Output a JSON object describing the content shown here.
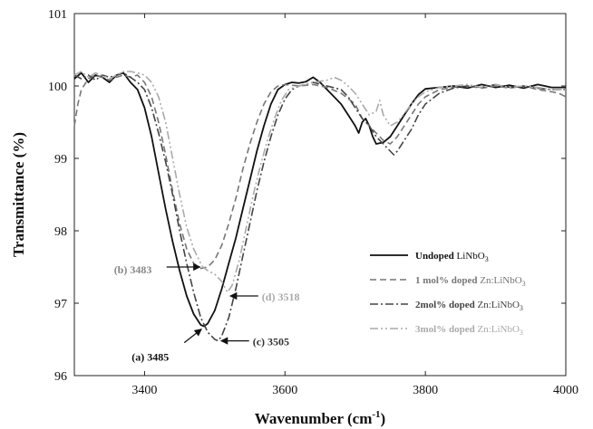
{
  "chart_data": {
    "type": "line",
    "title": "",
    "xlabel": "Wavenumber",
    "xlabel_unit": "(cm",
    "xlabel_unit_sup": "-1",
    "xlabel_unit_close": ")",
    "ylabel": "Transmittance (%)",
    "xlim": [
      3300,
      4000
    ],
    "ylim": [
      96,
      101
    ],
    "xticks": [
      3400,
      3600,
      3800,
      4000
    ],
    "yticks": [
      96,
      97,
      98,
      99,
      100,
      101
    ],
    "grid": false,
    "legend_position": "bottom-right",
    "series": [
      {
        "name": "Undoped LiNbO3",
        "name_bold": "Undoped ",
        "name_normal": "LiNbO",
        "name_sub": "3",
        "color": "#111111",
        "dash": "",
        "points": [
          [
            3300,
            100.1
          ],
          [
            3310,
            100.18
          ],
          [
            3320,
            100.05
          ],
          [
            3330,
            100.15
          ],
          [
            3340,
            100.12
          ],
          [
            3350,
            100.05
          ],
          [
            3360,
            100.15
          ],
          [
            3370,
            100.18
          ],
          [
            3380,
            100.05
          ],
          [
            3390,
            99.95
          ],
          [
            3400,
            99.7
          ],
          [
            3410,
            99.3
          ],
          [
            3420,
            98.8
          ],
          [
            3430,
            98.3
          ],
          [
            3440,
            97.85
          ],
          [
            3450,
            97.45
          ],
          [
            3460,
            97.1
          ],
          [
            3470,
            96.85
          ],
          [
            3480,
            96.7
          ],
          [
            3485,
            96.68
          ],
          [
            3490,
            96.72
          ],
          [
            3500,
            96.9
          ],
          [
            3510,
            97.2
          ],
          [
            3520,
            97.55
          ],
          [
            3530,
            97.9
          ],
          [
            3540,
            98.3
          ],
          [
            3550,
            98.7
          ],
          [
            3560,
            99.1
          ],
          [
            3570,
            99.45
          ],
          [
            3580,
            99.75
          ],
          [
            3590,
            99.95
          ],
          [
            3600,
            100.02
          ],
          [
            3610,
            100.05
          ],
          [
            3620,
            100.04
          ],
          [
            3630,
            100.06
          ],
          [
            3640,
            100.12
          ],
          [
            3650,
            100.05
          ],
          [
            3660,
            99.95
          ],
          [
            3670,
            99.85
          ],
          [
            3680,
            99.75
          ],
          [
            3690,
            99.6
          ],
          [
            3700,
            99.45
          ],
          [
            3705,
            99.35
          ],
          [
            3710,
            99.5
          ],
          [
            3715,
            99.55
          ],
          [
            3720,
            99.45
          ],
          [
            3725,
            99.3
          ],
          [
            3730,
            99.2
          ],
          [
            3740,
            99.22
          ],
          [
            3750,
            99.3
          ],
          [
            3760,
            99.45
          ],
          [
            3770,
            99.6
          ],
          [
            3780,
            99.75
          ],
          [
            3790,
            99.88
          ],
          [
            3800,
            99.96
          ],
          [
            3820,
            99.98
          ],
          [
            3840,
            100.0
          ],
          [
            3860,
            99.97
          ],
          [
            3880,
            100.02
          ],
          [
            3900,
            99.98
          ],
          [
            3920,
            100.01
          ],
          [
            3940,
            99.97
          ],
          [
            3960,
            100.02
          ],
          [
            3980,
            99.98
          ],
          [
            4000,
            99.98
          ]
        ]
      },
      {
        "name": "1 mol% doped Zn:LiNbO3",
        "name_bold": "1 mol% doped ",
        "name_normal": "Zn:LiNbO",
        "name_sub": "3",
        "color": "#777777",
        "dash": "7,4",
        "points": [
          [
            3300,
            99.45
          ],
          [
            3305,
            99.75
          ],
          [
            3310,
            99.95
          ],
          [
            3320,
            100.1
          ],
          [
            3330,
            100.15
          ],
          [
            3340,
            100.12
          ],
          [
            3350,
            100.08
          ],
          [
            3360,
            100.12
          ],
          [
            3370,
            100.15
          ],
          [
            3380,
            100.12
          ],
          [
            3390,
            100.15
          ],
          [
            3400,
            100.05
          ],
          [
            3410,
            99.85
          ],
          [
            3420,
            99.5
          ],
          [
            3430,
            99.05
          ],
          [
            3440,
            98.55
          ],
          [
            3450,
            98.1
          ],
          [
            3460,
            97.75
          ],
          [
            3470,
            97.55
          ],
          [
            3480,
            97.48
          ],
          [
            3490,
            97.5
          ],
          [
            3500,
            97.6
          ],
          [
            3510,
            97.8
          ],
          [
            3520,
            98.1
          ],
          [
            3530,
            98.45
          ],
          [
            3540,
            98.85
          ],
          [
            3550,
            99.2
          ],
          [
            3560,
            99.5
          ],
          [
            3570,
            99.75
          ],
          [
            3580,
            99.92
          ],
          [
            3590,
            100.0
          ],
          [
            3600,
            100.02
          ],
          [
            3620,
            100.0
          ],
          [
            3640,
            100.02
          ],
          [
            3660,
            99.98
          ],
          [
            3680,
            99.9
          ],
          [
            3700,
            99.75
          ],
          [
            3710,
            99.55
          ],
          [
            3720,
            99.45
          ],
          [
            3730,
            99.35
          ],
          [
            3740,
            99.25
          ],
          [
            3750,
            99.2
          ],
          [
            3760,
            99.3
          ],
          [
            3770,
            99.45
          ],
          [
            3780,
            99.6
          ],
          [
            3790,
            99.75
          ],
          [
            3800,
            99.85
          ],
          [
            3820,
            99.95
          ],
          [
            3840,
            99.98
          ],
          [
            3860,
            100.0
          ],
          [
            3880,
            99.97
          ],
          [
            3900,
            100.0
          ],
          [
            3920,
            99.97
          ],
          [
            3940,
            100.0
          ],
          [
            3960,
            99.95
          ],
          [
            3980,
            99.92
          ],
          [
            3990,
            99.9
          ],
          [
            4000,
            99.85
          ]
        ]
      },
      {
        "name": "2mol% doped Zn:LiNbO3",
        "name_bold": "2mol% doped ",
        "name_normal": "Zn:LiNbO",
        "name_sub": "3",
        "color": "#444444",
        "dash": "9,3,2,3",
        "points": [
          [
            3300,
            100.15
          ],
          [
            3310,
            100.1
          ],
          [
            3320,
            100.15
          ],
          [
            3330,
            100.08
          ],
          [
            3340,
            100.15
          ],
          [
            3350,
            100.12
          ],
          [
            3360,
            100.15
          ],
          [
            3370,
            100.18
          ],
          [
            3380,
            100.12
          ],
          [
            3390,
            100.05
          ],
          [
            3400,
            99.95
          ],
          [
            3410,
            99.7
          ],
          [
            3420,
            99.35
          ],
          [
            3430,
            98.95
          ],
          [
            3440,
            98.5
          ],
          [
            3450,
            98.0
          ],
          [
            3460,
            97.55
          ],
          [
            3470,
            97.15
          ],
          [
            3480,
            96.8
          ],
          [
            3490,
            96.6
          ],
          [
            3500,
            96.5
          ],
          [
            3505,
            96.48
          ],
          [
            3510,
            96.55
          ],
          [
            3520,
            96.8
          ],
          [
            3530,
            97.2
          ],
          [
            3540,
            97.65
          ],
          [
            3550,
            98.1
          ],
          [
            3560,
            98.55
          ],
          [
            3570,
            98.95
          ],
          [
            3580,
            99.3
          ],
          [
            3590,
            99.6
          ],
          [
            3600,
            99.82
          ],
          [
            3610,
            99.95
          ],
          [
            3620,
            100.0
          ],
          [
            3640,
            100.05
          ],
          [
            3660,
            100.0
          ],
          [
            3680,
            99.95
          ],
          [
            3690,
            99.85
          ],
          [
            3700,
            99.7
          ],
          [
            3710,
            99.55
          ],
          [
            3720,
            99.45
          ],
          [
            3730,
            99.3
          ],
          [
            3740,
            99.2
          ],
          [
            3750,
            99.1
          ],
          [
            3755,
            99.05
          ],
          [
            3760,
            99.1
          ],
          [
            3770,
            99.25
          ],
          [
            3780,
            99.4
          ],
          [
            3790,
            99.6
          ],
          [
            3800,
            99.75
          ],
          [
            3820,
            99.9
          ],
          [
            3840,
            99.97
          ],
          [
            3860,
            100.0
          ],
          [
            3880,
            99.98
          ],
          [
            3900,
            100.02
          ],
          [
            3920,
            99.98
          ],
          [
            3940,
            100.0
          ],
          [
            3960,
            99.97
          ],
          [
            3980,
            99.95
          ],
          [
            4000,
            99.95
          ]
        ]
      },
      {
        "name": "3mol% doped Zn:LiNbO3",
        "name_bold": "3mol% doped ",
        "name_normal": "Zn:LiNbO",
        "name_sub": "3",
        "color": "#aaaaaa",
        "dash": "9,3,2,3,2,3",
        "points": [
          [
            3300,
            100.15
          ],
          [
            3310,
            100.2
          ],
          [
            3320,
            100.12
          ],
          [
            3330,
            100.18
          ],
          [
            3340,
            100.15
          ],
          [
            3350,
            100.1
          ],
          [
            3360,
            100.15
          ],
          [
            3370,
            100.2
          ],
          [
            3380,
            100.2
          ],
          [
            3390,
            100.18
          ],
          [
            3400,
            100.15
          ],
          [
            3410,
            100.05
          ],
          [
            3420,
            99.85
          ],
          [
            3430,
            99.5
          ],
          [
            3440,
            99.0
          ],
          [
            3450,
            98.5
          ],
          [
            3460,
            98.05
          ],
          [
            3470,
            97.75
          ],
          [
            3480,
            97.55
          ],
          [
            3483,
            97.5
          ],
          [
            3490,
            97.45
          ],
          [
            3500,
            97.4
          ],
          [
            3510,
            97.3
          ],
          [
            3518,
            97.15
          ],
          [
            3525,
            97.25
          ],
          [
            3535,
            97.6
          ],
          [
            3545,
            98.05
          ],
          [
            3555,
            98.5
          ],
          [
            3565,
            98.9
          ],
          [
            3575,
            99.25
          ],
          [
            3585,
            99.55
          ],
          [
            3595,
            99.8
          ],
          [
            3605,
            99.95
          ],
          [
            3620,
            100.0
          ],
          [
            3640,
            100.05
          ],
          [
            3660,
            100.08
          ],
          [
            3670,
            100.12
          ],
          [
            3680,
            100.08
          ],
          [
            3690,
            100.0
          ],
          [
            3700,
            99.9
          ],
          [
            3710,
            99.75
          ],
          [
            3720,
            99.6
          ],
          [
            3730,
            99.65
          ],
          [
            3735,
            99.8
          ],
          [
            3740,
            99.6
          ],
          [
            3750,
            99.45
          ],
          [
            3760,
            99.5
          ],
          [
            3770,
            99.62
          ],
          [
            3780,
            99.75
          ],
          [
            3790,
            99.85
          ],
          [
            3800,
            99.92
          ],
          [
            3820,
            99.98
          ],
          [
            3840,
            100.0
          ],
          [
            3860,
            100.02
          ],
          [
            3880,
            99.98
          ],
          [
            3900,
            100.02
          ],
          [
            3920,
            99.98
          ],
          [
            3940,
            100.0
          ],
          [
            3960,
            99.98
          ],
          [
            3980,
            99.95
          ],
          [
            4000,
            99.95
          ]
        ]
      }
    ],
    "annotations": [
      {
        "text": "(b) 3483",
        "color": "#888888",
        "x": 3483,
        "y": 97.5,
        "arrow_from": "left"
      },
      {
        "text": "(d) 3518",
        "color": "#aaaaaa",
        "x": 3518,
        "y": 97.1,
        "arrow_from": "right"
      },
      {
        "text": "(a) 3485",
        "color": "#111111",
        "x": 3485,
        "y": 96.68,
        "arrow_from": "below-left"
      },
      {
        "text": "(c) 3505",
        "color": "#333333",
        "x": 3505,
        "y": 96.48,
        "arrow_from": "right"
      }
    ]
  }
}
